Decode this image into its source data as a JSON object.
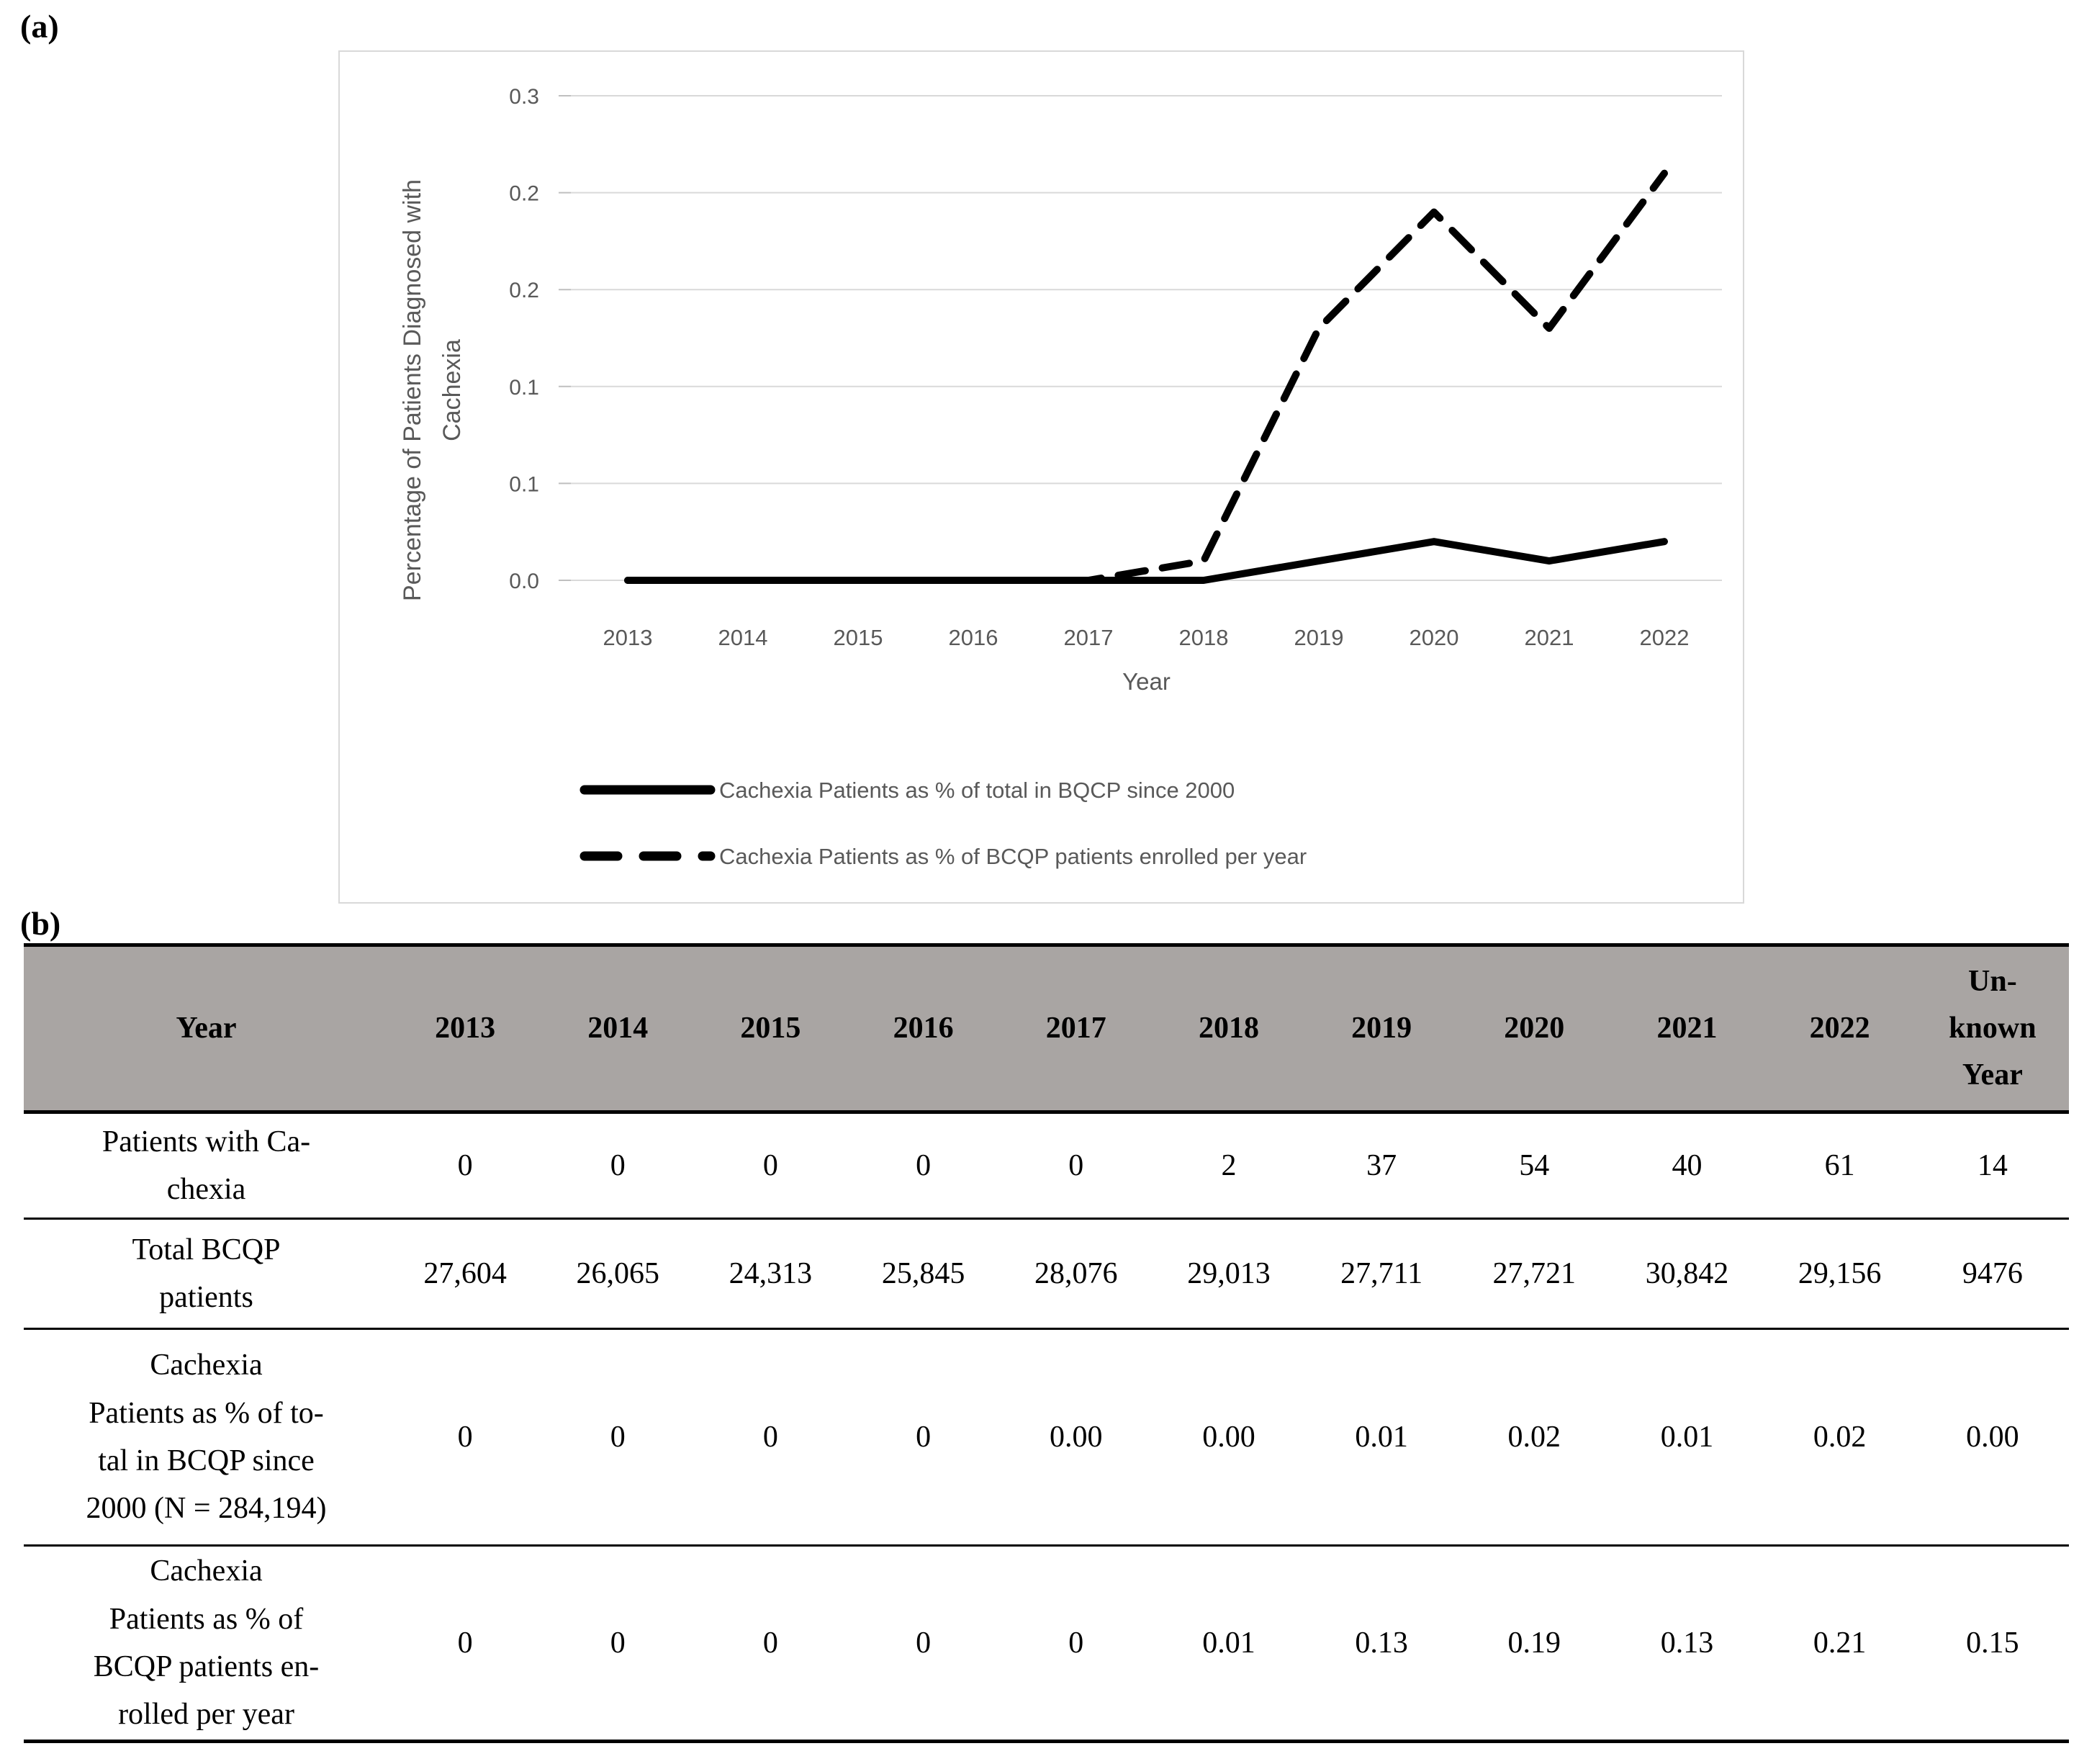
{
  "panel_a_label": "(a)",
  "panel_b_label": "(b)",
  "chart_data": {
    "type": "line",
    "x": [
      "2013",
      "2014",
      "2015",
      "2016",
      "2017",
      "2018",
      "2019",
      "2020",
      "2021",
      "2022"
    ],
    "xlabel": "Year",
    "ylabel_line1": "Percentage of Patients Diagnosed with",
    "ylabel_line2": "Cachexia",
    "ylim": [
      0,
      0.27
    ],
    "grid": true,
    "legend_position": "bottom",
    "y_ticks": {
      "values": [
        0.25,
        0.2,
        0.15,
        0.1,
        0.05,
        0
      ],
      "labels": [
        "0.3",
        "0.2",
        "0.2",
        "0.1",
        "0.1",
        "0.0"
      ]
    },
    "series": [
      {
        "name": "Cachexia Patients as % of total in BQCP since 2000",
        "line_style": "solid",
        "color": "#000000",
        "values": [
          0,
          0,
          0,
          0,
          0,
          0,
          0.01,
          0.02,
          0.01,
          0.02
        ]
      },
      {
        "name": "Cachexia Patients as % of BCQP patients enrolled per year",
        "line_style": "dashed",
        "color": "#000000",
        "values": [
          0,
          0,
          0,
          0,
          0,
          0.01,
          0.13,
          0.19,
          0.13,
          0.21
        ]
      }
    ]
  },
  "table": {
    "header": [
      "Year",
      "2013",
      "2014",
      "2015",
      "2016",
      "2017",
      "2018",
      "2019",
      "2020",
      "2021",
      "2022",
      "Un-\nknown\nYear"
    ],
    "rows": [
      {
        "label": "Patients with Ca-\nchexia",
        "values": [
          "0",
          "0",
          "0",
          "0",
          "0",
          "2",
          "37",
          "54",
          "40",
          "61",
          "14"
        ]
      },
      {
        "label": "Total BCQP\npatients",
        "values": [
          "27,604",
          "26,065",
          "24,313",
          "25,845",
          "28,076",
          "29,013",
          "27,711",
          "27,721",
          "30,842",
          "29,156",
          "9476"
        ]
      },
      {
        "label": "Cachexia\nPatients as % of to-\ntal in BCQP since\n2000 (N = 284,194)",
        "values": [
          "0",
          "0",
          "0",
          "0",
          "0.00",
          "0.00",
          "0.01",
          "0.02",
          "0.01",
          "0.02",
          "0.00"
        ]
      },
      {
        "label": "Cachexia\nPatients as % of\nBCQP patients en-\nrolled per year",
        "values": [
          "0",
          "0",
          "0",
          "0",
          "0",
          "0.01",
          "0.13",
          "0.19",
          "0.13",
          "0.21",
          "0.15"
        ]
      }
    ]
  },
  "colors": {
    "header_bg": "#a9a5a3",
    "grid": "#d9d9d9",
    "tick_mark": "#bfbfbf",
    "axis_text": "#595959",
    "line": "#000000",
    "panel_border": "#d9d9d9"
  }
}
